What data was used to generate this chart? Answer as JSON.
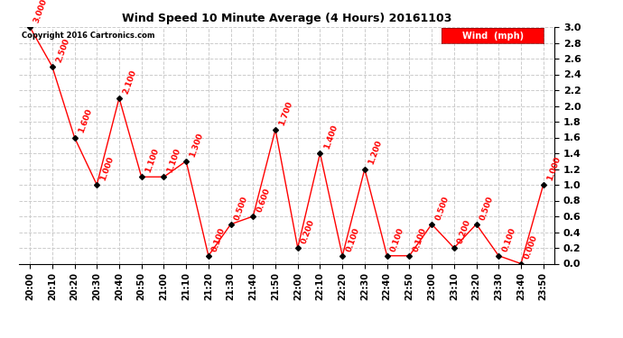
{
  "title": "Wind Speed 10 Minute Average (4 Hours) 20161103",
  "copyright": "Copyright 2016 Cartronics.com",
  "legend_label": "Wind  (mph)",
  "x_labels": [
    "20:00",
    "20:10",
    "20:20",
    "20:30",
    "20:40",
    "20:50",
    "21:00",
    "21:10",
    "21:20",
    "21:30",
    "21:40",
    "21:50",
    "22:00",
    "22:10",
    "22:20",
    "22:30",
    "22:40",
    "22:50",
    "23:00",
    "23:10",
    "23:20",
    "23:30",
    "23:40",
    "23:50"
  ],
  "y_values": [
    3.0,
    2.5,
    1.6,
    1.0,
    2.1,
    1.1,
    1.1,
    1.3,
    0.1,
    0.5,
    0.6,
    1.7,
    0.2,
    1.4,
    0.1,
    1.2,
    0.1,
    0.1,
    0.5,
    0.2,
    0.5,
    0.1,
    0.0,
    1.0
  ],
  "label_values": [
    "3.000",
    "2.500",
    "1.600",
    "1.000",
    "2.100",
    "1.100",
    "1.100",
    "1.300",
    "0.100",
    "0.500",
    "0.600",
    "1.700",
    "0.200",
    "1.400",
    "0.100",
    "1.200",
    "0.100",
    "0.100",
    "0.500",
    "0.200",
    "0.500",
    "0.100",
    "0.000",
    "1.000"
  ],
  "line_color": "red",
  "marker_color": "black",
  "marker_style": "D",
  "marker_size": 3,
  "label_color": "red",
  "label_fontsize": 6.5,
  "grid_color": "#cccccc",
  "background_color": "white",
  "ylim": [
    0.0,
    3.0
  ],
  "yticks": [
    0.0,
    0.2,
    0.4,
    0.6,
    0.8,
    1.0,
    1.2,
    1.4,
    1.6,
    1.8,
    2.0,
    2.2,
    2.4,
    2.6,
    2.8,
    3.0
  ]
}
